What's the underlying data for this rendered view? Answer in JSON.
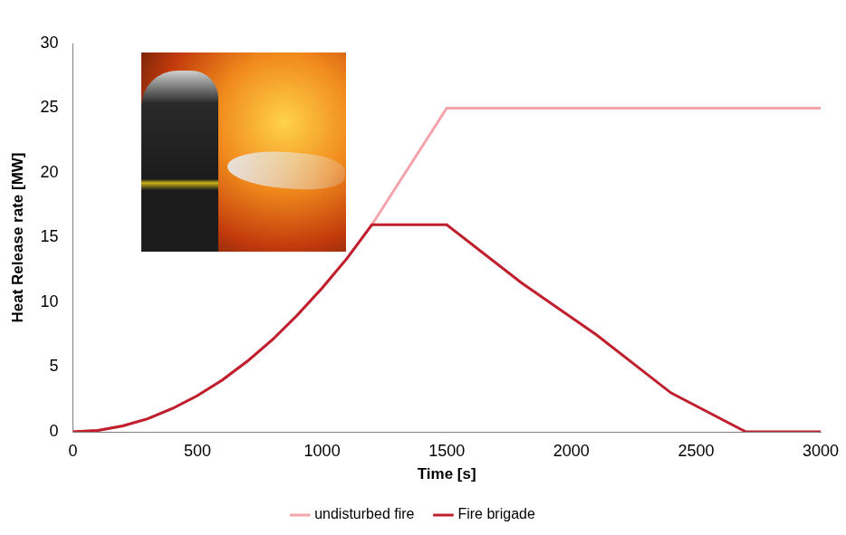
{
  "chart_data": {
    "type": "line",
    "x_label": "Time [s]",
    "y_label": "Heat Release rate [MW]",
    "x": [
      0,
      100,
      200,
      300,
      400,
      500,
      600,
      700,
      800,
      900,
      1000,
      1100,
      1200,
      1500,
      1800,
      2100,
      2400,
      2700,
      3000
    ],
    "series": [
      {
        "name": "undisturbed fire",
        "color": "#f4a3ab",
        "values": [
          0,
          0.1,
          0.45,
          1.0,
          1.8,
          2.8,
          4.0,
          5.45,
          7.1,
          9.0,
          11.1,
          13.4,
          16,
          25,
          25,
          25,
          25,
          25,
          25
        ]
      },
      {
        "name": "Fire brigade",
        "color": "#c0202e",
        "values": [
          0,
          0.1,
          0.45,
          1.0,
          1.8,
          2.8,
          4.0,
          5.45,
          7.1,
          9.0,
          11.1,
          13.4,
          16,
          16,
          11.5,
          7.5,
          3,
          0,
          0
        ]
      }
    ],
    "xlim": [
      0,
      3000
    ],
    "xticks": [
      0,
      500,
      1000,
      1500,
      2000,
      2500,
      3000
    ],
    "ylim": [
      0,
      30
    ],
    "yticks": [
      0,
      5,
      10,
      15,
      20,
      25,
      30
    ],
    "grid": false,
    "legend": "bottom"
  }
}
